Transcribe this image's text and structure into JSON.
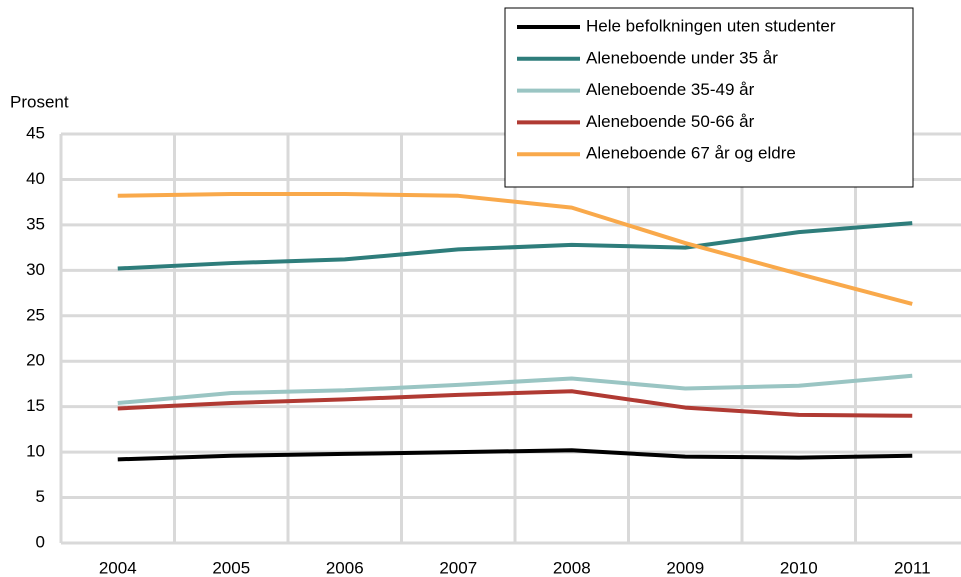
{
  "chart_data": {
    "type": "line",
    "y_label": "Prosent",
    "categories": [
      "2004",
      "2005",
      "2006",
      "2007",
      "2008",
      "2009",
      "2010",
      "2011"
    ],
    "series": [
      {
        "name": "Hele befolkningen uten studenter",
        "color": "#000000",
        "values": [
          9.2,
          9.6,
          9.8,
          10.0,
          10.2,
          9.5,
          9.4,
          9.6
        ]
      },
      {
        "name": "Aleneboende under 35 år",
        "color": "#2e7d7b",
        "values": [
          30.2,
          30.8,
          31.2,
          32.3,
          32.8,
          32.5,
          34.2,
          35.2
        ]
      },
      {
        "name": "Aleneboende 35-49 år",
        "color": "#9ac5c3",
        "values": [
          15.4,
          16.5,
          16.8,
          17.4,
          18.1,
          17.0,
          17.3,
          18.4
        ]
      },
      {
        "name": "Aleneboende 50-66 år",
        "color": "#b03a33",
        "values": [
          14.8,
          15.4,
          15.8,
          16.3,
          16.7,
          14.9,
          14.1,
          14.0
        ]
      },
      {
        "name": "Aleneboende 67 år og eldre",
        "color": "#f9a94b",
        "values": [
          38.2,
          38.4,
          38.4,
          38.2,
          36.9,
          33.0,
          29.6,
          26.3
        ]
      }
    ],
    "ylim": [
      0,
      45
    ],
    "yticks": [
      0,
      5,
      10,
      15,
      20,
      25,
      30,
      35,
      40,
      45
    ],
    "grid": true,
    "legend": "upper right"
  }
}
